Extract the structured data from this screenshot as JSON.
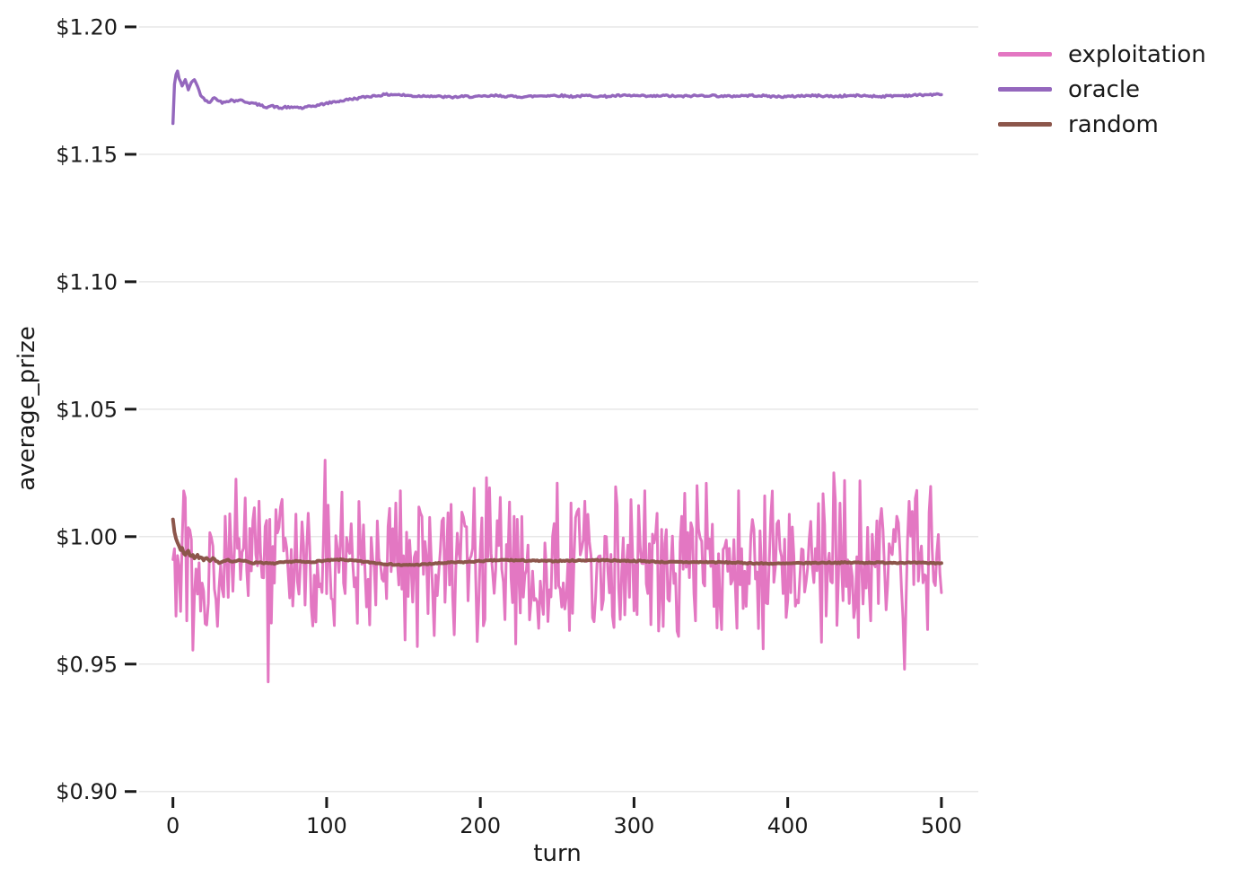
{
  "chart_data": {
    "type": "line",
    "title": "",
    "xlabel": "turn",
    "ylabel": "average_prize",
    "xlim": [
      -22,
      524
    ],
    "ylim": [
      0.8985,
      1.2035
    ],
    "grid": true,
    "legend_position": "outside-upper-right",
    "x_ticks": [
      {
        "label": "0",
        "value": 0
      },
      {
        "label": "100",
        "value": 100
      },
      {
        "label": "200",
        "value": 200
      },
      {
        "label": "300",
        "value": 300
      },
      {
        "label": "400",
        "value": 400
      },
      {
        "label": "500",
        "value": 500
      }
    ],
    "y_ticks": [
      {
        "label": "$0.90",
        "value": 0.9
      },
      {
        "label": "$0.95",
        "value": 0.95
      },
      {
        "label": "$1.00",
        "value": 1.0
      },
      {
        "label": "$1.05",
        "value": 1.05
      },
      {
        "label": "$1.10",
        "value": 1.1
      },
      {
        "label": "$1.15",
        "value": 1.15
      },
      {
        "label": "$1.20",
        "value": 1.2
      }
    ],
    "style": {
      "grid_color": "#e7e7e7",
      "tick_color": "#1a1a1a",
      "background": "#ffffff"
    },
    "series": [
      {
        "name": "exploitation",
        "color": "#e377c2",
        "width": 3,
        "style": "noisy",
        "x_start": 0,
        "x_end": 500,
        "step": 1,
        "mean": 0.9895,
        "noise_amplitude": 0.037,
        "clip_min": 0.956,
        "clip_max": 1.0235,
        "seed": 123456,
        "keypoints": [
          [
            0,
            0.991
          ],
          [
            13,
            0.9555
          ],
          [
            34,
            1.008
          ],
          [
            62,
            0.943
          ],
          [
            99,
            1.03
          ],
          [
            148,
            1.018
          ],
          [
            196,
            1.019
          ],
          [
            250,
            1.021
          ],
          [
            307,
            1.018
          ],
          [
            341,
            1.02
          ],
          [
            385,
            1.016
          ],
          [
            430,
            1.025
          ],
          [
            437,
            1.022
          ],
          [
            476,
            0.948
          ],
          [
            500,
            0.978
          ]
        ]
      },
      {
        "name": "oracle",
        "color": "#9467bd",
        "width": 3.4,
        "style": "keypoints",
        "jitter": 0.0008,
        "seed": 42,
        "keypoints": [
          [
            0,
            1.162
          ],
          [
            1,
            1.1775
          ],
          [
            2,
            1.181
          ],
          [
            3,
            1.1825
          ],
          [
            4,
            1.18
          ],
          [
            5,
            1.1785
          ],
          [
            6,
            1.177
          ],
          [
            7,
            1.178
          ],
          [
            8,
            1.179
          ],
          [
            9,
            1.1775
          ],
          [
            10,
            1.1755
          ],
          [
            11,
            1.1765
          ],
          [
            12,
            1.178
          ],
          [
            13,
            1.179
          ],
          [
            14,
            1.1795
          ],
          [
            15,
            1.178
          ],
          [
            16,
            1.1765
          ],
          [
            17,
            1.175
          ],
          [
            18,
            1.1735
          ],
          [
            19,
            1.1725
          ],
          [
            20,
            1.1718
          ],
          [
            22,
            1.171
          ],
          [
            24,
            1.1705
          ],
          [
            26,
            1.1722
          ],
          [
            28,
            1.1718
          ],
          [
            30,
            1.1712
          ],
          [
            32,
            1.17
          ],
          [
            34,
            1.1706
          ],
          [
            36,
            1.171
          ],
          [
            38,
            1.1714
          ],
          [
            40,
            1.1708
          ],
          [
            43,
            1.1714
          ],
          [
            46,
            1.1708
          ],
          [
            49,
            1.1704
          ],
          [
            52,
            1.17
          ],
          [
            55,
            1.1696
          ],
          [
            58,
            1.169
          ],
          [
            61,
            1.1686
          ],
          [
            64,
            1.169
          ],
          [
            67,
            1.1686
          ],
          [
            70,
            1.168
          ],
          [
            73,
            1.1686
          ],
          [
            76,
            1.1682
          ],
          [
            80,
            1.1686
          ],
          [
            84,
            1.1681
          ],
          [
            88,
            1.1686
          ],
          [
            92,
            1.169
          ],
          [
            96,
            1.1695
          ],
          [
            100,
            1.17
          ],
          [
            105,
            1.1706
          ],
          [
            110,
            1.171
          ],
          [
            115,
            1.1716
          ],
          [
            120,
            1.172
          ],
          [
            126,
            1.1726
          ],
          [
            132,
            1.173
          ],
          [
            138,
            1.1734
          ],
          [
            144,
            1.1735
          ],
          [
            150,
            1.1732
          ],
          [
            158,
            1.1728
          ],
          [
            166,
            1.173
          ],
          [
            174,
            1.1726
          ],
          [
            182,
            1.1724
          ],
          [
            190,
            1.1727
          ],
          [
            200,
            1.1726
          ],
          [
            210,
            1.173
          ],
          [
            220,
            1.1727
          ],
          [
            230,
            1.1726
          ],
          [
            240,
            1.173
          ],
          [
            250,
            1.1731
          ],
          [
            260,
            1.1727
          ],
          [
            270,
            1.173
          ],
          [
            280,
            1.1727
          ],
          [
            290,
            1.173
          ],
          [
            300,
            1.173
          ],
          [
            310,
            1.1727
          ],
          [
            320,
            1.173
          ],
          [
            330,
            1.1727
          ],
          [
            340,
            1.173
          ],
          [
            350,
            1.1731
          ],
          [
            360,
            1.1727
          ],
          [
            370,
            1.173
          ],
          [
            380,
            1.1731
          ],
          [
            390,
            1.1727
          ],
          [
            400,
            1.1726
          ],
          [
            410,
            1.173
          ],
          [
            420,
            1.173
          ],
          [
            430,
            1.1727
          ],
          [
            440,
            1.173
          ],
          [
            450,
            1.173
          ],
          [
            460,
            1.1727
          ],
          [
            470,
            1.173
          ],
          [
            480,
            1.1731
          ],
          [
            490,
            1.1734
          ],
          [
            500,
            1.1734
          ]
        ]
      },
      {
        "name": "random",
        "color": "#8c564b",
        "width": 4,
        "style": "keypoints",
        "jitter": 0.0005,
        "seed": 7,
        "keypoints": [
          [
            0,
            1.007
          ],
          [
            1,
            1.002
          ],
          [
            2,
            0.999
          ],
          [
            3,
            0.9975
          ],
          [
            4,
            0.9963
          ],
          [
            5,
            0.9948
          ],
          [
            6,
            0.9956
          ],
          [
            7,
            0.9935
          ],
          [
            8,
            0.9928
          ],
          [
            9,
            0.9938
          ],
          [
            10,
            0.9946
          ],
          [
            11,
            0.9928
          ],
          [
            12,
            0.9922
          ],
          [
            13,
            0.9928
          ],
          [
            14,
            0.9916
          ],
          [
            15,
            0.9922
          ],
          [
            16,
            0.993
          ],
          [
            17,
            0.9915
          ],
          [
            18,
            0.992
          ],
          [
            20,
            0.9908
          ],
          [
            22,
            0.9918
          ],
          [
            24,
            0.9906
          ],
          [
            26,
            0.9916
          ],
          [
            28,
            0.9906
          ],
          [
            30,
            0.9896
          ],
          [
            33,
            0.9902
          ],
          [
            36,
            0.9908
          ],
          [
            39,
            0.9902
          ],
          [
            42,
            0.9908
          ],
          [
            45,
            0.9906
          ],
          [
            48,
            0.9902
          ],
          [
            52,
            0.9896
          ],
          [
            56,
            0.99
          ],
          [
            60,
            0.9896
          ],
          [
            65,
            0.9894
          ],
          [
            70,
            0.9898
          ],
          [
            75,
            0.99
          ],
          [
            80,
            0.9904
          ],
          [
            85,
            0.99
          ],
          [
            90,
            0.99
          ],
          [
            95,
            0.9904
          ],
          [
            100,
            0.9906
          ],
          [
            110,
            0.991
          ],
          [
            120,
            0.9904
          ],
          [
            130,
            0.9898
          ],
          [
            140,
            0.9892
          ],
          [
            150,
            0.9888
          ],
          [
            160,
            0.989
          ],
          [
            170,
            0.9894
          ],
          [
            180,
            0.9898
          ],
          [
            190,
            0.99
          ],
          [
            200,
            0.9904
          ],
          [
            215,
            0.9908
          ],
          [
            230,
            0.9906
          ],
          [
            245,
            0.9904
          ],
          [
            260,
            0.9906
          ],
          [
            275,
            0.9908
          ],
          [
            290,
            0.9906
          ],
          [
            305,
            0.9904
          ],
          [
            320,
            0.99
          ],
          [
            335,
            0.99
          ],
          [
            350,
            0.99
          ],
          [
            365,
            0.9898
          ],
          [
            380,
            0.9895
          ],
          [
            395,
            0.9894
          ],
          [
            410,
            0.9896
          ],
          [
            425,
            0.9898
          ],
          [
            440,
            0.9898
          ],
          [
            455,
            0.9898
          ],
          [
            470,
            0.9898
          ],
          [
            485,
            0.9897
          ],
          [
            500,
            0.9896
          ]
        ]
      }
    ],
    "legend": [
      {
        "label": "exploitation",
        "color": "#e377c2"
      },
      {
        "label": "oracle",
        "color": "#9467bd"
      },
      {
        "label": "random",
        "color": "#8c564b"
      }
    ]
  }
}
